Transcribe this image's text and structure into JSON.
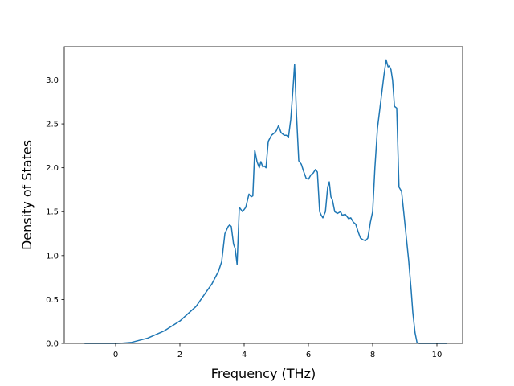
{
  "chart_data": {
    "type": "line",
    "title": "",
    "xlabel": "Frequency (THz)",
    "ylabel": "Density of States",
    "xlim": [
      -1.6,
      10.8
    ],
    "ylim": [
      0.0,
      3.38
    ],
    "grid": false,
    "x_ticks": [
      0,
      2,
      4,
      6,
      8,
      10
    ],
    "x_tick_labels": [
      "0",
      "2",
      "4",
      "6",
      "8",
      "10"
    ],
    "y_ticks": [
      0.0,
      0.5,
      1.0,
      1.5,
      2.0,
      2.5,
      3.0
    ],
    "y_tick_labels": [
      "0.0",
      "0.5",
      "1.0",
      "1.5",
      "2.0",
      "2.5",
      "3.0"
    ],
    "colors": {
      "line": "#1f77b4"
    },
    "series": [
      {
        "x": [
          -0.95,
          0.0,
          0.2,
          0.5,
          1.0,
          1.5,
          2.0,
          2.5,
          3.0,
          3.2,
          3.3,
          3.4,
          3.5,
          3.55,
          3.6,
          3.67,
          3.72,
          3.78,
          3.85,
          3.95,
          4.05,
          4.15,
          4.22,
          4.27,
          4.33,
          4.4,
          4.47,
          4.52,
          4.58,
          4.63,
          4.68,
          4.75,
          4.85,
          4.95,
          5.0,
          5.07,
          5.15,
          5.25,
          5.32,
          5.38,
          5.45,
          5.52,
          5.57,
          5.63,
          5.7,
          5.78,
          5.85,
          5.93,
          6.0,
          6.08,
          6.15,
          6.22,
          6.28,
          6.35,
          6.4,
          6.45,
          6.53,
          6.6,
          6.65,
          6.7,
          6.75,
          6.82,
          6.9,
          7.0,
          7.05,
          7.15,
          7.25,
          7.32,
          7.4,
          7.47,
          7.55,
          7.62,
          7.7,
          7.78,
          7.85,
          7.93,
          8.0,
          8.07,
          8.15,
          8.25,
          8.35,
          8.42,
          8.48,
          8.52,
          8.57,
          8.62,
          8.68,
          8.75,
          8.82,
          8.9,
          8.98,
          9.05,
          9.12,
          9.2,
          9.25,
          9.32,
          9.38,
          9.45,
          10.3
        ],
        "y": [
          0.0,
          0.0,
          0.002,
          0.012,
          0.06,
          0.14,
          0.255,
          0.42,
          0.68,
          0.82,
          0.93,
          1.25,
          1.33,
          1.35,
          1.33,
          1.13,
          1.08,
          0.9,
          1.55,
          1.5,
          1.55,
          1.7,
          1.67,
          1.68,
          2.2,
          2.07,
          2.0,
          2.07,
          2.01,
          2.02,
          2.0,
          2.3,
          2.37,
          2.4,
          2.42,
          2.48,
          2.4,
          2.37,
          2.37,
          2.35,
          2.55,
          2.9,
          3.18,
          2.6,
          2.08,
          2.04,
          1.96,
          1.88,
          1.87,
          1.92,
          1.94,
          1.98,
          1.95,
          1.5,
          1.46,
          1.43,
          1.5,
          1.78,
          1.84,
          1.67,
          1.63,
          1.5,
          1.48,
          1.5,
          1.46,
          1.47,
          1.42,
          1.43,
          1.38,
          1.36,
          1.27,
          1.2,
          1.18,
          1.17,
          1.2,
          1.38,
          1.5,
          2.0,
          2.45,
          2.75,
          3.05,
          3.23,
          3.15,
          3.16,
          3.12,
          3.0,
          2.7,
          2.68,
          1.78,
          1.73,
          1.45,
          1.2,
          0.95,
          0.6,
          0.35,
          0.12,
          0.01,
          0.0,
          0.0
        ]
      }
    ]
  }
}
